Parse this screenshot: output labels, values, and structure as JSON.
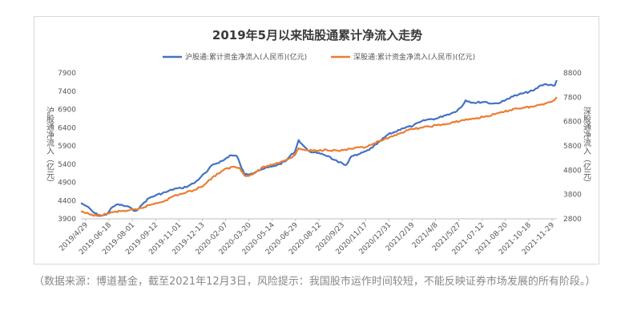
{
  "chart_data": {
    "type": "line",
    "title": "2019年5月以来陆股通累计净流入走势",
    "legend_position": "top",
    "grid": false,
    "xlabel": "",
    "y_left_label": "沪股通净流入（亿元）",
    "y_right_label": "深股通净流入（亿元）",
    "y_left_lim": [
      3900,
      7900
    ],
    "y_right_lim": [
      2800,
      8800
    ],
    "y_left_ticks": [
      3900,
      4400,
      4900,
      5400,
      5900,
      6400,
      6900,
      7400,
      7900
    ],
    "y_right_ticks": [
      2800,
      3800,
      4800,
      5800,
      6800,
      7800,
      8800
    ],
    "x_tick_labels": [
      "2019/4/29",
      "2019-06-18",
      "2019-08-01",
      "2019-09-12",
      "2019-11-01",
      "2019-12-13",
      "2020-02-07",
      "2020-03-20",
      "2020-05-14",
      "2020-06-29",
      "2020-08-12",
      "2020/9/23",
      "2020/11/17",
      "2020/12/31",
      "2021/2/19",
      "2021/4/8",
      "2021/5/27",
      "2021-07-12",
      "2021-08-20",
      "2021-10-18",
      "2021-11-29"
    ],
    "x_range": [
      "2019/4/29",
      "2021/12/3"
    ],
    "series": [
      {
        "name": "沪股通:累计资金净流入(人民币)(亿元)",
        "axis": "left",
        "color": "#4472c4",
        "points": [
          [
            "2019/4/29",
            4330
          ],
          [
            "2019-05-10",
            4250
          ],
          [
            "2019-05-24",
            4080
          ],
          [
            "2019-06-05",
            3980
          ],
          [
            "2019-06-18",
            4010
          ],
          [
            "2019-07-01",
            4220
          ],
          [
            "2019-07-12",
            4300
          ],
          [
            "2019-07-22",
            4260
          ],
          [
            "2019-08-01",
            4240
          ],
          [
            "2019-08-12",
            4120
          ],
          [
            "2019-08-22",
            4170
          ],
          [
            "2019-09-02",
            4350
          ],
          [
            "2019-09-12",
            4470
          ],
          [
            "2019-09-26",
            4550
          ],
          [
            "2019-10-15",
            4630
          ],
          [
            "2019-11-01",
            4720
          ],
          [
            "2019-11-15",
            4740
          ],
          [
            "2019-11-29",
            4800
          ],
          [
            "2019-12-13",
            4900
          ],
          [
            "2019-12-25",
            5060
          ],
          [
            "2020-01-06",
            5200
          ],
          [
            "2020-01-16",
            5380
          ],
          [
            "2020-02-07",
            5500
          ],
          [
            "2020-02-20",
            5640
          ],
          [
            "2020-03-05",
            5620
          ],
          [
            "2020-03-12",
            5380
          ],
          [
            "2020-03-20",
            5120
          ],
          [
            "2020-04-02",
            5140
          ],
          [
            "2020-04-16",
            5230
          ],
          [
            "2020-04-29",
            5280
          ],
          [
            "2020-05-14",
            5330
          ],
          [
            "2020-05-29",
            5400
          ],
          [
            "2020-06-10",
            5480
          ],
          [
            "2020-06-19",
            5620
          ],
          [
            "2020-06-29",
            5750
          ],
          [
            "2020-07-06",
            6060
          ],
          [
            "2020-07-16",
            5900
          ],
          [
            "2020-07-24",
            5780
          ],
          [
            "2020-08-04",
            5720
          ],
          [
            "2020-08-12",
            5700
          ],
          [
            "2020-08-21",
            5690
          ],
          [
            "2020-09-03",
            5620
          ],
          [
            "2020-09-14",
            5520
          ],
          [
            "2020/9/23",
            5450
          ],
          [
            "2020-10-09",
            5380
          ],
          [
            "2020-10-20",
            5620
          ],
          [
            "2020-10-30",
            5640
          ],
          [
            "2020/11/17",
            5750
          ],
          [
            "2020-11-30",
            5850
          ],
          [
            "2020-12-15",
            6020
          ],
          [
            "2020/12/31",
            6210
          ],
          [
            "2021-01-14",
            6280
          ],
          [
            "2021-01-28",
            6380
          ],
          [
            "2021/2/19",
            6450
          ],
          [
            "2021-03-05",
            6550
          ],
          [
            "2021-03-19",
            6620
          ],
          [
            "2021/4/8",
            6650
          ],
          [
            "2021-04-22",
            6730
          ],
          [
            "2021-05-12",
            6820
          ],
          [
            "2021/5/27",
            6970
          ],
          [
            "2021-06-04",
            7150
          ],
          [
            "2021-06-21",
            7080
          ],
          [
            "2021-07-12",
            7110
          ],
          [
            "2021-07-26",
            7060
          ],
          [
            "2021-08-06",
            7070
          ],
          [
            "2021-08-20",
            7130
          ],
          [
            "2021-09-03",
            7250
          ],
          [
            "2021-09-17",
            7300
          ],
          [
            "2021-10-18",
            7420
          ],
          [
            "2021-11-01",
            7560
          ],
          [
            "2021-11-12",
            7590
          ],
          [
            "2021-11-29",
            7560
          ],
          [
            "2021/12/3",
            7700
          ]
        ]
      },
      {
        "name": "深股通:累计资金净流入(人民币)(亿元)",
        "axis": "right",
        "color": "#ed7d31",
        "points": [
          [
            "2019/4/29",
            3080
          ],
          [
            "2019-05-15",
            3000
          ],
          [
            "2019-05-30",
            2920
          ],
          [
            "2019-06-18",
            2990
          ],
          [
            "2019-07-01",
            3070
          ],
          [
            "2019-07-20",
            3120
          ],
          [
            "2019-08-01",
            3140
          ],
          [
            "2019-08-20",
            3180
          ],
          [
            "2019-09-12",
            3360
          ],
          [
            "2019-10-15",
            3560
          ],
          [
            "2019-11-01",
            3750
          ],
          [
            "2019-11-20",
            3850
          ],
          [
            "2019-12-13",
            4000
          ],
          [
            "2019-12-31",
            4200
          ],
          [
            "2020-01-16",
            4500
          ],
          [
            "2020-02-07",
            4800
          ],
          [
            "2020-02-25",
            4940
          ],
          [
            "2020-03-10",
            4900
          ],
          [
            "2020-03-20",
            4580
          ],
          [
            "2020-04-05",
            4620
          ],
          [
            "2020-04-29",
            4950
          ],
          [
            "2020-05-14",
            5020
          ],
          [
            "2020-06-01",
            5150
          ],
          [
            "2020-06-19",
            5300
          ],
          [
            "2020-06-29",
            5420
          ],
          [
            "2020-07-06",
            5700
          ],
          [
            "2020-07-20",
            5620
          ],
          [
            "2020-08-12",
            5600
          ],
          [
            "2020-08-30",
            5650
          ],
          [
            "2020/9/23",
            5600
          ],
          [
            "2020-10-20",
            5680
          ],
          [
            "2020/11/17",
            5750
          ],
          [
            "2020-11-30",
            5850
          ],
          [
            "2020-12-15",
            6000
          ],
          [
            "2020/12/31",
            6100
          ],
          [
            "2021-01-20",
            6300
          ],
          [
            "2021/2/19",
            6500
          ],
          [
            "2021-03-10",
            6550
          ],
          [
            "2021/4/8",
            6650
          ],
          [
            "2021-04-30",
            6700
          ],
          [
            "2021/5/27",
            6850
          ],
          [
            "2021-06-20",
            6920
          ],
          [
            "2021-07-12",
            7000
          ],
          [
            "2021-08-01",
            7100
          ],
          [
            "2021-08-20",
            7200
          ],
          [
            "2021-09-10",
            7330
          ],
          [
            "2021-10-18",
            7420
          ],
          [
            "2021-11-10",
            7550
          ],
          [
            "2021-11-29",
            7700
          ],
          [
            "2021/12/3",
            7800
          ]
        ]
      }
    ]
  },
  "caption": {
    "text": "（数据来源：博道基金，截至2021年12月3日，风险提示：我国股市运作时间较短，不能反映证券市场发展的所有阶段。）"
  }
}
